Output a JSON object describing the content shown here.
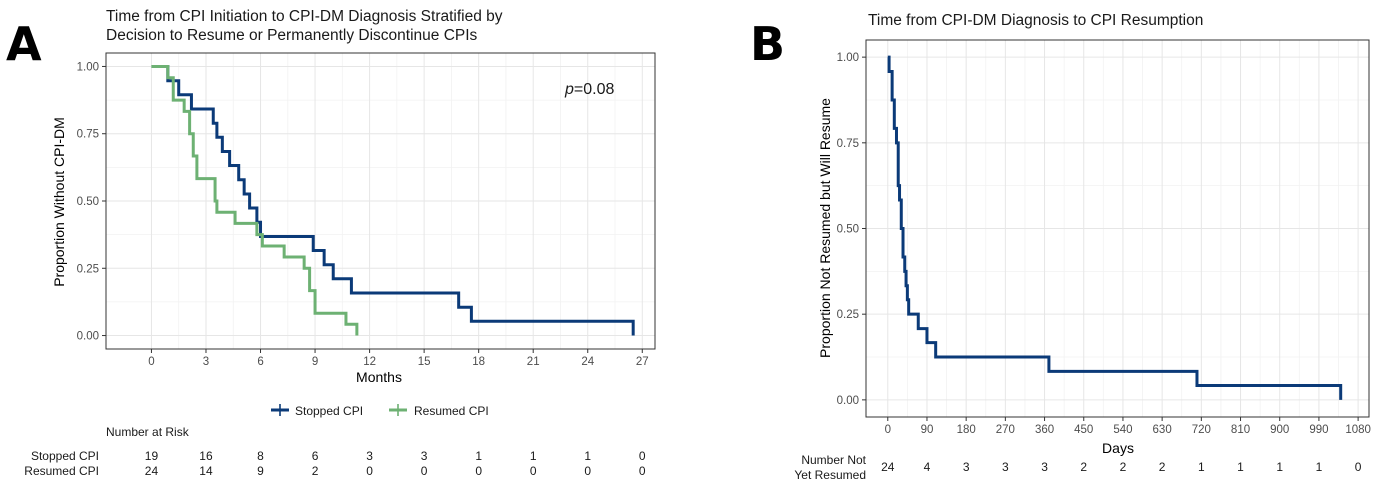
{
  "panel_a": {
    "label": "A",
    "risk_header": "Number at Risk",
    "risk_table": [
      {
        "label": "Stopped CPI",
        "values": [
          "19",
          "16",
          "8",
          "6",
          "3",
          "3",
          "1",
          "1",
          "1",
          "0"
        ]
      },
      {
        "label": "Resumed CPI",
        "values": [
          "24",
          "14",
          "9",
          "2",
          "0",
          "0",
          "0",
          "0",
          "0",
          "0"
        ]
      }
    ]
  },
  "panel_b": {
    "label": "B",
    "risk_label_line1": "Number Not",
    "risk_label_line2": "Yet Resumed",
    "risk_values": [
      "24",
      "4",
      "3",
      "3",
      "3",
      "2",
      "2",
      "2",
      "1",
      "1",
      "1",
      "1",
      "0"
    ]
  },
  "chart_data": [
    {
      "type": "line",
      "subtype": "kaplan-meier step",
      "title_line1": "Time from CPI Initiation to CPI-DM Diagnosis Stratified by",
      "title_line2": "Decision to Resume or Permanently Discontinue CPIs",
      "xlabel": "Months",
      "ylabel": "Proportion Without CPI-DM",
      "xlim": [
        -2.5,
        27.7
      ],
      "ylim": [
        -0.05,
        1.05
      ],
      "xticks": [
        0,
        3,
        6,
        9,
        12,
        15,
        18,
        21,
        24,
        27
      ],
      "xtick_labels": [
        "0",
        "3",
        "6",
        "9",
        "12",
        "15",
        "18",
        "21",
        "24",
        "27"
      ],
      "yticks": [
        0,
        0.25,
        0.5,
        0.75,
        1.0
      ],
      "ytick_labels": [
        "0.00",
        "0.25",
        "0.50",
        "0.75",
        "1.00"
      ],
      "grid": true,
      "legend_position": "bottom",
      "annotation_prefix": "p",
      "annotation_value": "=0.08",
      "series": [
        {
          "name": "Stopped CPI",
          "color": "#0b3a78",
          "x": [
            0,
            0.9,
            1.5,
            2.2,
            3.4,
            3.6,
            3.9,
            4.3,
            4.8,
            5.1,
            5.4,
            5.8,
            6.0,
            8.9,
            9.5,
            10.0,
            11.0,
            16.9,
            17.6,
            26.5,
            26.5
          ],
          "y": [
            1.0,
            0.947,
            0.895,
            0.842,
            0.789,
            0.737,
            0.684,
            0.632,
            0.579,
            0.526,
            0.474,
            0.421,
            0.368,
            0.316,
            0.263,
            0.211,
            0.158,
            0.105,
            0.053,
            0.053,
            0.0
          ]
        },
        {
          "name": "Resumed CPI",
          "color": "#6db173",
          "x": [
            0,
            0.9,
            1.2,
            1.8,
            2.1,
            2.3,
            2.5,
            3.5,
            3.6,
            4.6,
            5.8,
            6.1,
            7.3,
            8.4,
            8.7,
            9.0,
            10.7,
            11.3,
            11.3
          ],
          "y": [
            1.0,
            0.958,
            0.875,
            0.833,
            0.75,
            0.667,
            0.583,
            0.5,
            0.458,
            0.417,
            0.375,
            0.333,
            0.292,
            0.25,
            0.167,
            0.083,
            0.042,
            0.042,
            0.0
          ]
        }
      ]
    },
    {
      "type": "line",
      "subtype": "kaplan-meier step",
      "title": "Time from CPI-DM Diagnosis to CPI Resumption",
      "xlabel": "Days",
      "ylabel": "Proportion Not Resumed but Will Resume",
      "xlim": [
        -50,
        1105
      ],
      "ylim": [
        -0.05,
        1.05
      ],
      "xticks": [
        0,
        90,
        180,
        270,
        360,
        450,
        540,
        630,
        720,
        810,
        900,
        990,
        1080
      ],
      "xtick_labels": [
        "0",
        "90",
        "180",
        "270",
        "360",
        "450",
        "540",
        "630",
        "720",
        "810",
        "900",
        "990",
        "1080"
      ],
      "yticks": [
        0,
        0.25,
        0.5,
        0.75,
        1.0
      ],
      "ytick_labels": [
        "0.00",
        "0.25",
        "0.50",
        "0.75",
        "1.00"
      ],
      "grid": true,
      "series": [
        {
          "color": "#0b3a78",
          "x": [
            0,
            3,
            10,
            15,
            20,
            24,
            27,
            31,
            35,
            39,
            42,
            45,
            48,
            55,
            70,
            90,
            110,
            370,
            710,
            1040,
            1040
          ],
          "y": [
            1.0,
            0.958,
            0.875,
            0.792,
            0.75,
            0.625,
            0.583,
            0.5,
            0.417,
            0.375,
            0.333,
            0.292,
            0.25,
            0.25,
            0.208,
            0.167,
            0.125,
            0.083,
            0.042,
            0.042,
            0.0
          ]
        }
      ]
    }
  ]
}
